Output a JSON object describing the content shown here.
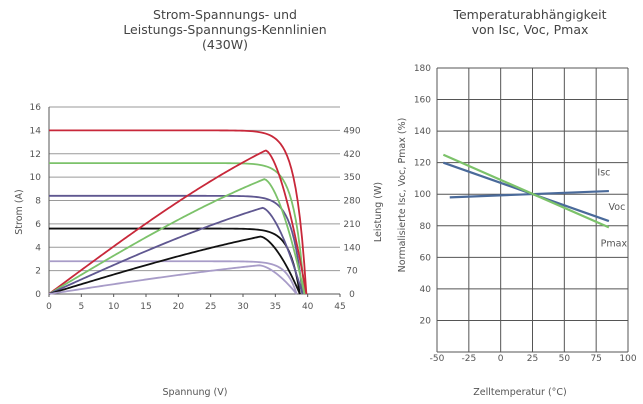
{
  "chart_data": [
    {
      "type": "line",
      "title": "Strom-Spannungs- und\nLeistungs-Spannungs-Kennlinien\n(430W)",
      "xlabel": "Spannung (V)",
      "ylabel": "Strom (A)",
      "y2label": "Leistung (W)",
      "xlim": [
        0,
        45
      ],
      "ylim": [
        0,
        16
      ],
      "y2lim": [
        0,
        560
      ],
      "xticks": [
        "0",
        "5",
        "10",
        "15",
        "20",
        "25",
        "30",
        "35",
        "40",
        "45"
      ],
      "yticks": [
        "0",
        "2",
        "4",
        "6",
        "8",
        "10",
        "12",
        "14",
        "16"
      ],
      "y2ticks": [
        "0",
        "70",
        "140",
        "210",
        "280",
        "350",
        "420",
        "490"
      ],
      "iv_series": [
        {
          "color": "#c8283a",
          "isc": 14.0,
          "voc": 39.8,
          "vmp": 32.5,
          "imp": 13.3
        },
        {
          "color": "#7cc26a",
          "isc": 11.2,
          "voc": 39.5,
          "vmp": 32.5,
          "imp": 10.6
        },
        {
          "color": "#5f5790",
          "isc": 8.4,
          "voc": 39.2,
          "vmp": 32.5,
          "imp": 8.0
        },
        {
          "color": "#111111",
          "isc": 5.6,
          "voc": 38.8,
          "vmp": 32.5,
          "imp": 5.3
        },
        {
          "color": "#a89cc8",
          "isc": 2.8,
          "voc": 38.3,
          "vmp": 32.5,
          "imp": 2.6
        }
      ],
      "pv_series": [
        {
          "color": "#c8283a",
          "pmax": 430,
          "vmp": 33.5,
          "voc": 39.8
        },
        {
          "color": "#7cc26a",
          "pmax": 344,
          "vmp": 33.3,
          "voc": 39.5
        },
        {
          "color": "#5f5790",
          "pmax": 258,
          "vmp": 33.0,
          "voc": 39.2
        },
        {
          "color": "#111111",
          "pmax": 172,
          "vmp": 32.7,
          "voc": 38.8
        },
        {
          "color": "#a89cc8",
          "pmax": 86,
          "vmp": 32.5,
          "voc": 38.3
        }
      ]
    },
    {
      "type": "line",
      "title": "Temperaturabhängigkeit\nvon Isc, Voc, Pmax",
      "xlabel": "Zelltemperatur  (°C)",
      "ylabel": "Normalisierte Isc, Voc, Pmax (%)",
      "xlim": [
        -50,
        100
      ],
      "ylim": [
        0,
        180
      ],
      "xticks": [
        "-50",
        "-25",
        "0",
        "25",
        "50",
        "75",
        "100"
      ],
      "yticks": [
        "20",
        "40",
        "60",
        "80",
        "100",
        "120",
        "140",
        "160",
        "180"
      ],
      "series": [
        {
          "name": "Isc",
          "color": "#4a6a9a",
          "x": [
            -40,
            85
          ],
          "y": [
            98,
            102
          ]
        },
        {
          "name": "Voc",
          "color": "#4a6a9a",
          "x": [
            -45,
            85
          ],
          "y": [
            120,
            83
          ]
        },
        {
          "name": "Pmax",
          "color": "#7cc26a",
          "x": [
            -45,
            85
          ],
          "y": [
            125,
            79
          ]
        }
      ]
    }
  ]
}
